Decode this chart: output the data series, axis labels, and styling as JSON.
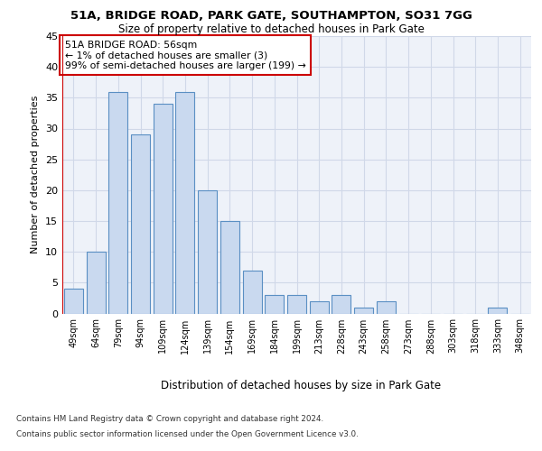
{
  "title1": "51A, BRIDGE ROAD, PARK GATE, SOUTHAMPTON, SO31 7GG",
  "title2": "Size of property relative to detached houses in Park Gate",
  "xlabel": "Distribution of detached houses by size in Park Gate",
  "ylabel": "Number of detached properties",
  "bin_labels": [
    "49sqm",
    "64sqm",
    "79sqm",
    "94sqm",
    "109sqm",
    "124sqm",
    "139sqm",
    "154sqm",
    "169sqm",
    "184sqm",
    "199sqm",
    "213sqm",
    "228sqm",
    "243sqm",
    "258sqm",
    "273sqm",
    "288sqm",
    "303sqm",
    "318sqm",
    "333sqm",
    "348sqm"
  ],
  "bar_heights": [
    4,
    10,
    36,
    29,
    34,
    36,
    20,
    15,
    7,
    3,
    3,
    2,
    3,
    1,
    2,
    0,
    0,
    0,
    0,
    1,
    0
  ],
  "bar_color": "#c9d9ef",
  "bar_edge_color": "#5a8fc3",
  "annotation_line1": "51A BRIDGE ROAD: 56sqm",
  "annotation_line2": "← 1% of detached houses are smaller (3)",
  "annotation_line3": "99% of semi-detached houses are larger (199) →",
  "red_color": "#cc0000",
  "bg_color": "#eef2f9",
  "grid_color": "#d0d8e8",
  "ylim": [
    0,
    45
  ],
  "yticks": [
    0,
    5,
    10,
    15,
    20,
    25,
    30,
    35,
    40,
    45
  ],
  "footer1": "Contains HM Land Registry data © Crown copyright and database right 2024.",
  "footer2": "Contains public sector information licensed under the Open Government Licence v3.0."
}
